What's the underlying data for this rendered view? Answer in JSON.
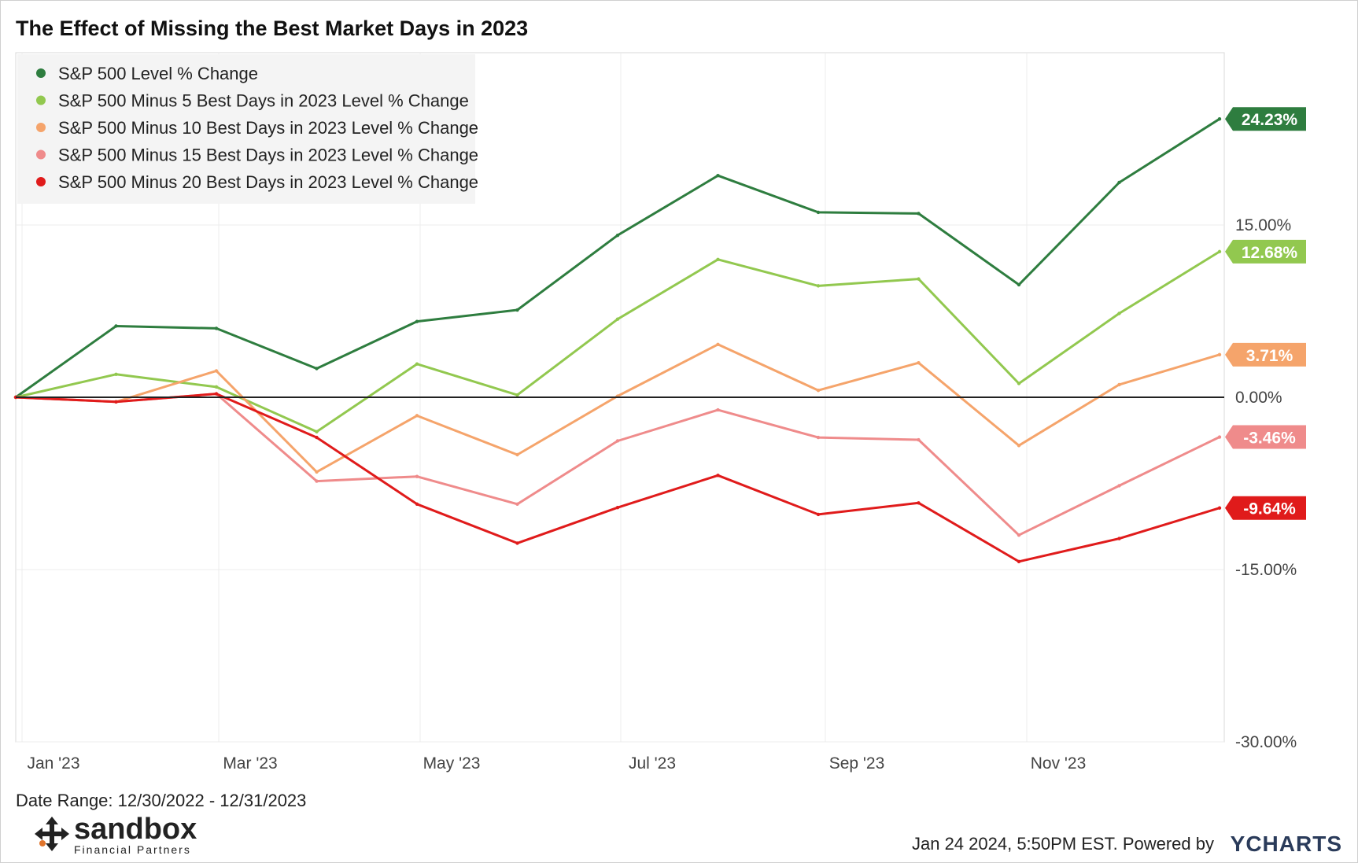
{
  "chart_data": {
    "type": "line",
    "title": "The Effect of Missing the Best Market Days in 2023",
    "xlabel": "",
    "ylabel": "",
    "ylim": [
      -30,
      30
    ],
    "y_ticks": [
      {
        "value": 15,
        "label": "15.00%"
      },
      {
        "value": 0,
        "label": "0.00%"
      },
      {
        "value": -15,
        "label": "-15.00%"
      },
      {
        "value": -30,
        "label": "-30.00%"
      }
    ],
    "x_ticks": [
      "Jan '23",
      "Mar '23",
      "May '23",
      "Jul '23",
      "Sep '23",
      "Nov '23"
    ],
    "grid": true,
    "legend_position": "top-left",
    "x_points": [
      "Dec '22",
      "Jan '23",
      "Feb '23",
      "Mar '23",
      "Apr '23",
      "May '23",
      "Jun '23",
      "Jul '23",
      "Aug '23",
      "Sep '23",
      "Oct '23",
      "Nov '23",
      "Dec '23"
    ],
    "series": [
      {
        "name": "S&P 500 Level % Change",
        "color": "#2e7d3f",
        "end_label": "24.23%",
        "values": [
          0,
          6.2,
          6.0,
          2.5,
          6.6,
          7.6,
          14.1,
          19.3,
          16.1,
          16.0,
          9.8,
          18.7,
          24.23
        ]
      },
      {
        "name": "S&P 500 Minus 5 Best Days in 2023 Level % Change",
        "color": "#92c84f",
        "end_label": "12.68%",
        "values": [
          0,
          2.0,
          0.9,
          -3.0,
          2.9,
          0.2,
          6.8,
          12.0,
          9.7,
          10.3,
          1.2,
          7.3,
          12.68
        ]
      },
      {
        "name": "S&P 500 Minus 10 Best Days in 2023 Level % Change",
        "color": "#f5a46b",
        "end_label": "3.71%",
        "values": [
          0,
          -0.4,
          2.3,
          -6.5,
          -1.6,
          -5.0,
          0.1,
          4.6,
          0.6,
          3.0,
          -4.2,
          1.1,
          3.71
        ]
      },
      {
        "name": "S&P 500 Minus 15 Best Days in 2023 Level % Change",
        "color": "#ef8b8b",
        "end_label": "-3.46%",
        "values": [
          0,
          -0.4,
          0.3,
          -7.3,
          -6.9,
          -9.3,
          -3.8,
          -1.1,
          -3.5,
          -3.7,
          -12.0,
          -7.7,
          -3.46
        ]
      },
      {
        "name": "S&P 500 Minus 20 Best Days in 2023 Level % Change",
        "color": "#e01b1b",
        "end_label": "-9.64%",
        "values": [
          0,
          -0.4,
          0.3,
          -3.5,
          -9.3,
          -12.7,
          -9.6,
          -6.8,
          -10.2,
          -9.2,
          -14.3,
          -12.3,
          -9.64
        ]
      }
    ],
    "baseline": 0
  },
  "footer": {
    "date_range": "Date Range: 12/30/2022 - 12/31/2023",
    "logo_word": "sandbox",
    "logo_sub": "Financial Partners",
    "timestamp": "Jan 24 2024, 5:50PM EST. Powered by",
    "brand": "YCHARTS"
  }
}
